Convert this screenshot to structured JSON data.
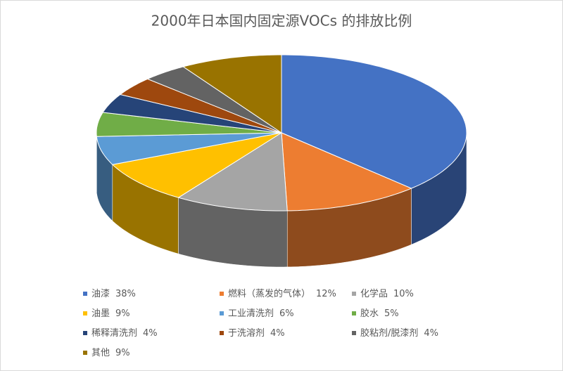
{
  "chart_data": {
    "type": "pie3d",
    "title": "2000年日本国内固定源VOCs 的排放比例",
    "categories": [
      "油漆",
      "燃料（蒸发的气体）",
      "化学品",
      "油墨",
      "工业清洗剂",
      "胶水",
      "稀释清洗剂",
      "于洗溶剂",
      "胶粘剂/脱漆剂",
      "其他"
    ],
    "values": [
      38,
      12,
      10,
      9,
      6,
      5,
      4,
      4,
      4,
      9
    ],
    "value_labels": [
      "38%",
      "12%",
      "10%",
      "9%",
      "6%",
      "5%",
      "4%",
      "4%",
      "4%",
      "9%"
    ],
    "colors": [
      "#4472c4",
      "#ed7d31",
      "#a5a5a5",
      "#ffc000",
      "#5b9bd5",
      "#70ad47",
      "#264478",
      "#9e480e",
      "#636363",
      "#997300"
    ]
  }
}
